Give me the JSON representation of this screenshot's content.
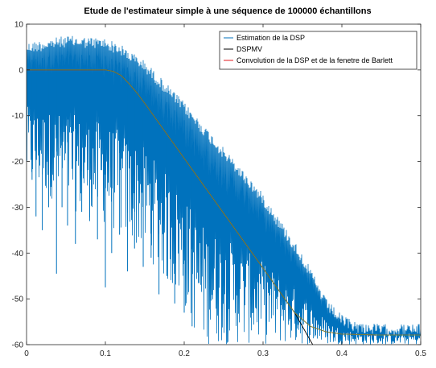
{
  "chart_data": {
    "type": "line",
    "title": "Etude de l'estimateur simple à une séquence de 100000 échantillons",
    "xlabel": "",
    "ylabel": "",
    "xlim": [
      0,
      0.5
    ],
    "ylim": [
      -60,
      10
    ],
    "x_ticks": [
      {
        "value": 0,
        "label": "0"
      },
      {
        "value": 0.1,
        "label": "0.1"
      },
      {
        "value": 0.2,
        "label": "0.2"
      },
      {
        "value": 0.3,
        "label": "0.3"
      },
      {
        "value": 0.4,
        "label": "0.4"
      },
      {
        "value": 0.5,
        "label": "0.5"
      }
    ],
    "y_ticks": [
      {
        "value": 10,
        "label": "10"
      },
      {
        "value": 0,
        "label": "0"
      },
      {
        "value": -10,
        "label": "-10"
      },
      {
        "value": -20,
        "label": "-20"
      },
      {
        "value": -30,
        "label": "-30"
      },
      {
        "value": -40,
        "label": "-40"
      },
      {
        "value": -50,
        "label": "-50"
      },
      {
        "value": -60,
        "label": "-60"
      }
    ],
    "grid": false,
    "legend_position": "top-right",
    "series": [
      {
        "name": "Estimation de la DSP",
        "color": "#0072bd",
        "style": "noisy-band",
        "upper_envelope": [
          [
            0,
            6
          ],
          [
            0.05,
            7.5
          ],
          [
            0.1,
            7
          ],
          [
            0.12,
            5.5
          ],
          [
            0.15,
            2
          ],
          [
            0.2,
            -7
          ],
          [
            0.25,
            -17
          ],
          [
            0.3,
            -27
          ],
          [
            0.35,
            -40
          ],
          [
            0.38,
            -50
          ],
          [
            0.4,
            -53.5
          ],
          [
            0.42,
            -55
          ],
          [
            0.45,
            -55.5
          ],
          [
            0.5,
            -55.5
          ]
        ],
        "lower_envelope": [
          [
            0,
            -25
          ],
          [
            0.05,
            -30
          ],
          [
            0.1,
            -34
          ],
          [
            0.15,
            -40
          ],
          [
            0.2,
            -52
          ],
          [
            0.22,
            -60
          ],
          [
            0.5,
            -60
          ]
        ],
        "deep_spikes": [
          [
            0.007,
            -24
          ],
          [
            0.012,
            -32
          ],
          [
            0.02,
            -35
          ],
          [
            0.028,
            -30
          ],
          [
            0.038,
            -44.5
          ],
          [
            0.045,
            -30
          ],
          [
            0.052,
            -34
          ],
          [
            0.062,
            -38
          ],
          [
            0.07,
            -31
          ],
          [
            0.08,
            -33
          ],
          [
            0.09,
            -37
          ],
          [
            0.1,
            -47.5
          ],
          [
            0.108,
            -40
          ],
          [
            0.118,
            -36
          ],
          [
            0.128,
            -44
          ],
          [
            0.137,
            -39
          ],
          [
            0.148,
            -43
          ],
          [
            0.158,
            -41
          ],
          [
            0.168,
            -49
          ],
          [
            0.178,
            -45
          ],
          [
            0.188,
            -51
          ],
          [
            0.2,
            -53
          ],
          [
            0.21,
            -56
          ]
        ]
      },
      {
        "name": "DSPMV",
        "color": "#000000",
        "style": "line",
        "points": [
          [
            0,
            0
          ],
          [
            0.1,
            0
          ],
          [
            0.11,
            -0.3
          ],
          [
            0.12,
            -1.2
          ],
          [
            0.13,
            -3
          ],
          [
            0.14,
            -5
          ],
          [
            0.15,
            -7.3
          ],
          [
            0.2,
            -19.3
          ],
          [
            0.25,
            -31.3
          ],
          [
            0.3,
            -43.3
          ],
          [
            0.34,
            -53
          ],
          [
            0.363,
            -60
          ]
        ]
      },
      {
        "name": "Convolution de la DSP et de la fenetre de Barlett",
        "color": "#e3191c",
        "style": "line",
        "points": [
          [
            0,
            0
          ],
          [
            0.1,
            0
          ],
          [
            0.11,
            -0.3
          ],
          [
            0.12,
            -1.2
          ],
          [
            0.13,
            -3
          ],
          [
            0.14,
            -5
          ],
          [
            0.15,
            -7.3
          ],
          [
            0.2,
            -19.3
          ],
          [
            0.25,
            -31.3
          ],
          [
            0.3,
            -43.3
          ],
          [
            0.34,
            -53
          ],
          [
            0.36,
            -56
          ],
          [
            0.38,
            -57.2
          ],
          [
            0.4,
            -57.7
          ],
          [
            0.45,
            -57.9
          ],
          [
            0.5,
            -57.9
          ]
        ]
      },
      {
        "name": "",
        "color": "#6f8a3a",
        "style": "line",
        "points": [
          [
            0,
            0
          ],
          [
            0.1,
            0
          ],
          [
            0.11,
            -0.3
          ],
          [
            0.12,
            -1.2
          ],
          [
            0.13,
            -3
          ],
          [
            0.14,
            -5
          ],
          [
            0.15,
            -7.3
          ],
          [
            0.2,
            -19.3
          ],
          [
            0.25,
            -31.3
          ],
          [
            0.3,
            -43.3
          ],
          [
            0.34,
            -53
          ],
          [
            0.36,
            -56
          ],
          [
            0.38,
            -57.2
          ],
          [
            0.4,
            -57.7
          ],
          [
            0.45,
            -57.9
          ],
          [
            0.5,
            -57.9
          ]
        ]
      }
    ]
  }
}
